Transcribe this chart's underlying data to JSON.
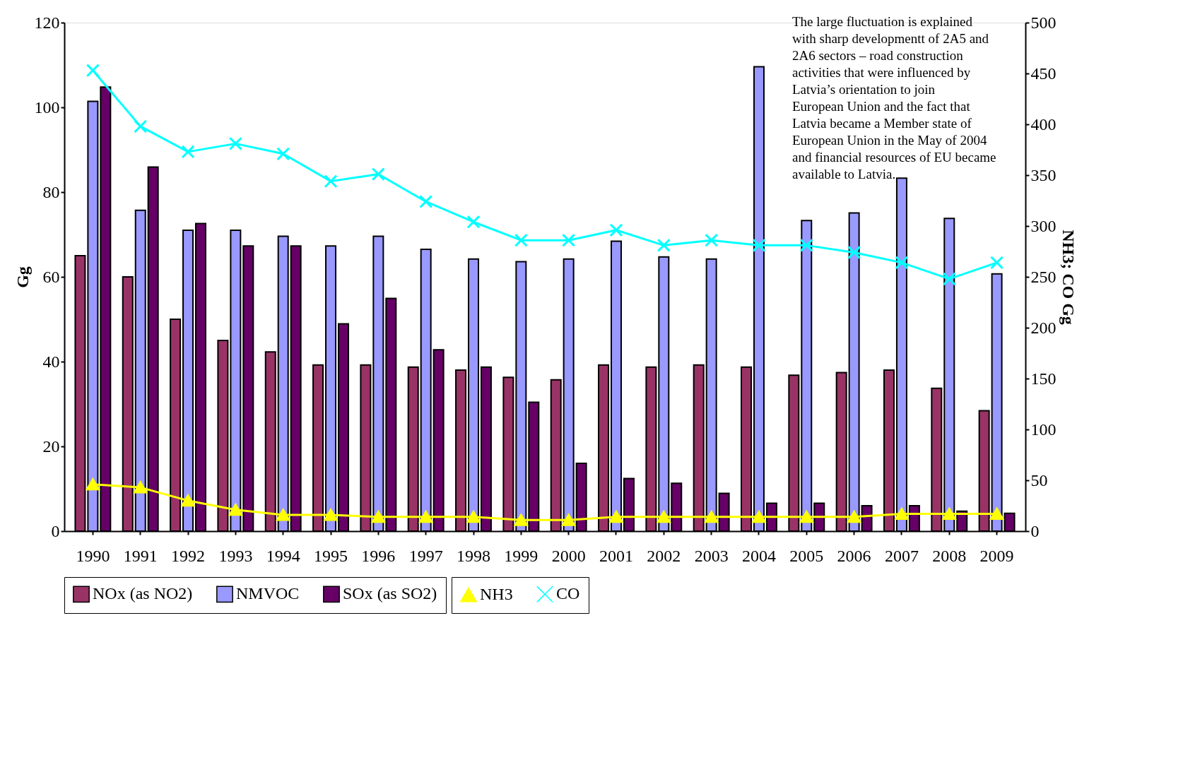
{
  "chart_data": {
    "type": "bar",
    "ylabel": "Gg",
    "y2label": "NH3; CO Gg",
    "categories": [
      "1990",
      "1991",
      "1992",
      "1993",
      "1994",
      "1995",
      "1996",
      "1997",
      "1998",
      "1999",
      "2000",
      "2001",
      "2002",
      "2003",
      "2004",
      "2005",
      "2006",
      "2007",
      "2008",
      "2009"
    ],
    "series": [
      {
        "name": "NOx (as NO2)",
        "color": "#993366",
        "values": [
          65,
          60,
          50,
          45,
          42.3,
          39.2,
          39.2,
          38.7,
          38,
          36.3,
          35.7,
          39.2,
          38.7,
          39.2,
          38.7,
          36.8,
          37.4,
          38,
          33.7,
          28.4
        ]
      },
      {
        "name": "NMVOC",
        "color": "#9999ff",
        "values": [
          101.4,
          75.7,
          71,
          71,
          69.6,
          67.3,
          69.6,
          66.5,
          64.2,
          63.6,
          64.2,
          68.4,
          64.7,
          64.2,
          109.6,
          73.3,
          75.1,
          83.3,
          73.8,
          60.7
        ]
      },
      {
        "name": "SOx (as SO2)",
        "color": "#660066",
        "values": [
          104.8,
          85.9,
          72.6,
          67.3,
          67.3,
          48.9,
          54.9,
          42.8,
          38.7,
          30.4,
          16,
          12.4,
          11.3,
          8.9,
          6.6,
          6.6,
          6,
          6,
          4.7,
          4.2
        ]
      },
      {
        "name": "NH3",
        "type": "line",
        "axis": "y2",
        "color": "#ffff00",
        "marker": "triangle",
        "values": [
          46,
          43,
          30,
          21,
          16,
          16,
          14,
          14,
          14,
          11,
          11,
          14,
          14,
          14,
          14,
          14,
          14,
          17,
          17,
          17
        ]
      },
      {
        "name": "CO",
        "type": "line",
        "axis": "y2",
        "color": "#00ffff",
        "marker": "cross",
        "values": [
          453,
          398,
          373,
          381,
          371,
          344,
          351,
          324,
          304,
          286,
          286,
          296,
          281,
          286,
          281,
          281,
          274,
          264,
          248,
          264
        ]
      }
    ],
    "ylim": [
      0,
      120
    ],
    "yticks": [
      0,
      20,
      40,
      60,
      80,
      100,
      120
    ],
    "y2lim": [
      0,
      500
    ],
    "y2ticks": [
      0,
      50,
      100,
      150,
      200,
      250,
      300,
      350,
      400,
      450,
      500
    ],
    "grid": false,
    "legend": "bottom",
    "annotations": [
      "The large fluctuation is explained with sharp developmentt of 2A5 and 2A6 sectors – road construction activities that were influenced by Latvia’s orientation to join European Union and the fact that Latvia became a Member state of European Union in the May of 2004 and financial resources of EU became available to Latvia."
    ]
  }
}
